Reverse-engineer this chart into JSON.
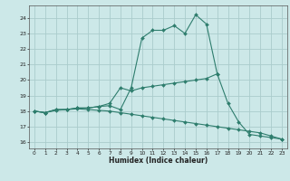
{
  "xlabel": "Humidex (Indice chaleur)",
  "background_color": "#cce8e8",
  "grid_color": "#aacccc",
  "line_color": "#2e7d6d",
  "xlim": [
    -0.5,
    23.5
  ],
  "ylim": [
    15.6,
    24.8
  ],
  "yticks": [
    16,
    17,
    18,
    19,
    20,
    21,
    22,
    23,
    24
  ],
  "xticks": [
    0,
    1,
    2,
    3,
    4,
    5,
    6,
    7,
    8,
    9,
    10,
    11,
    12,
    13,
    14,
    15,
    16,
    17,
    18,
    19,
    20,
    21,
    22,
    23
  ],
  "line1_x": [
    0,
    1,
    2,
    3,
    4,
    5,
    6,
    7,
    8,
    9,
    10,
    11,
    12,
    13,
    14,
    15,
    16,
    17,
    18,
    19,
    20,
    21,
    22,
    23
  ],
  "line1_y": [
    18.0,
    17.9,
    18.1,
    18.1,
    18.2,
    18.2,
    18.3,
    18.35,
    18.1,
    19.5,
    22.7,
    23.2,
    23.2,
    23.5,
    23.0,
    24.2,
    23.6,
    20.4,
    18.5,
    17.3,
    16.5,
    16.4,
    16.3,
    16.2
  ],
  "line2_x": [
    0,
    1,
    2,
    3,
    4,
    5,
    6,
    7,
    8,
    9,
    10,
    11,
    12,
    13,
    14,
    15,
    16,
    17
  ],
  "line2_y": [
    18.0,
    17.9,
    18.1,
    18.1,
    18.2,
    18.2,
    18.3,
    18.5,
    19.5,
    19.3,
    19.5,
    19.6,
    19.7,
    19.8,
    19.9,
    20.0,
    20.1,
    20.4
  ],
  "line3_x": [
    0,
    1,
    2,
    3,
    4,
    5,
    6,
    7,
    8,
    9,
    10,
    11,
    12,
    13,
    14,
    15,
    16,
    17,
    18,
    19,
    20,
    21,
    22,
    23
  ],
  "line3_y": [
    18.0,
    17.9,
    18.05,
    18.1,
    18.15,
    18.1,
    18.05,
    18.0,
    17.9,
    17.8,
    17.7,
    17.6,
    17.5,
    17.4,
    17.3,
    17.2,
    17.1,
    17.0,
    16.9,
    16.8,
    16.7,
    16.6,
    16.4,
    16.2
  ]
}
